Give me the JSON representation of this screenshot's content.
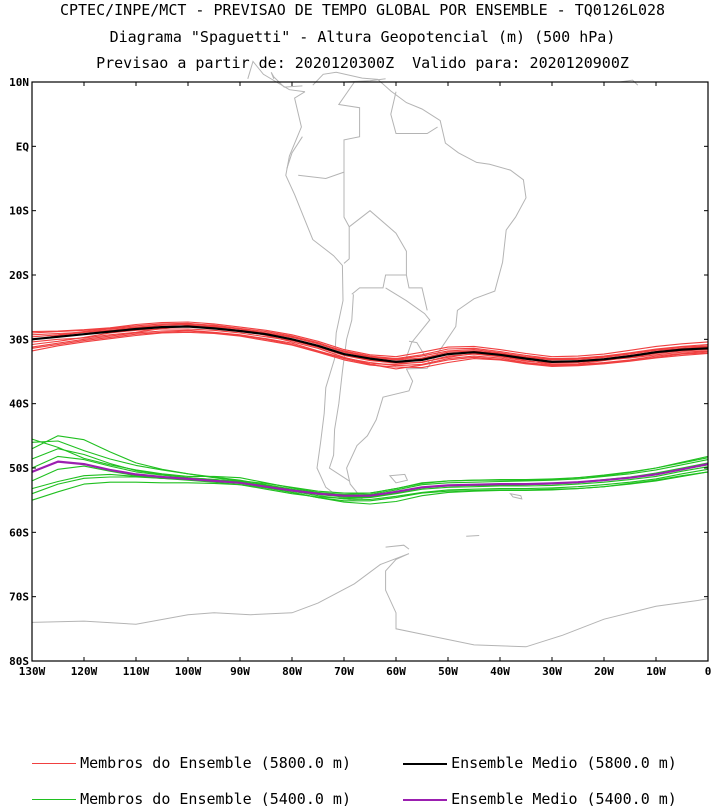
{
  "titles": {
    "line1": "CPTEC/INPE/MCT - PREVISAO DE TEMPO GLOBAL POR ENSEMBLE - TQ0126L028",
    "line2": "Diagrama \"Spaguetti\" - Altura Geopotencial (m) (500 hPa)",
    "line3": "Previsao a partir de: 2020120300Z  Valido para: 2020120900Z"
  },
  "map": {
    "lon_range": [
      -130,
      0
    ],
    "lat_range": [
      -80,
      10
    ],
    "lat_ticks": [
      {
        "value": 10,
        "label": "10N"
      },
      {
        "value": 0,
        "label": "EQ"
      },
      {
        "value": -10,
        "label": "10S"
      },
      {
        "value": -20,
        "label": "20S"
      },
      {
        "value": -30,
        "label": "30S"
      },
      {
        "value": -40,
        "label": "40S"
      },
      {
        "value": -50,
        "label": "50S"
      },
      {
        "value": -60,
        "label": "60S"
      },
      {
        "value": -70,
        "label": "70S"
      },
      {
        "value": -80,
        "label": "80S"
      }
    ],
    "lon_ticks": [
      {
        "value": -130,
        "label": "130W"
      },
      {
        "value": -120,
        "label": "120W"
      },
      {
        "value": -110,
        "label": "110W"
      },
      {
        "value": -100,
        "label": "100W"
      },
      {
        "value": -90,
        "label": "90W"
      },
      {
        "value": -80,
        "label": "80W"
      },
      {
        "value": -70,
        "label": "70W"
      },
      {
        "value": -60,
        "label": "60W"
      },
      {
        "value": -50,
        "label": "50W"
      },
      {
        "value": -40,
        "label": "40W"
      },
      {
        "value": -30,
        "label": "30W"
      },
      {
        "value": -20,
        "label": "20W"
      },
      {
        "value": -10,
        "label": "10W"
      },
      {
        "value": 0,
        "label": "0"
      }
    ],
    "colors": {
      "coast": "#b4b4b4",
      "members_5800": "#f04040",
      "mean_5800": "#000000",
      "members_5400": "#20c020",
      "mean_5400": "#9b1fb0"
    }
  },
  "chart_data": {
    "type": "line",
    "x": [
      -130,
      -125,
      -120,
      -115,
      -110,
      -105,
      -100,
      -95,
      -90,
      -85,
      -80,
      -75,
      -70,
      -65,
      -60,
      -55,
      -50,
      -45,
      -40,
      -35,
      -30,
      -25,
      -20,
      -15,
      -10,
      -5,
      0
    ],
    "series": [
      {
        "name": "Ensemble Medio (5800.0 m)",
        "role": "mean_5800",
        "values": [
          -30.0,
          -29.6,
          -29.2,
          -28.8,
          -28.4,
          -28.1,
          -28.0,
          -28.3,
          -28.7,
          -29.2,
          -30.0,
          -31.0,
          -32.3,
          -33.0,
          -33.5,
          -33.2,
          -32.3,
          -32.0,
          -32.4,
          -33.0,
          -33.5,
          -33.4,
          -33.1,
          -32.6,
          -32.0,
          -31.6,
          -31.4
        ]
      },
      {
        "name": "",
        "role": "members_5800",
        "values": [
          -29.0,
          -28.8,
          -28.6,
          -28.3,
          -27.9,
          -27.6,
          -27.5,
          -27.9,
          -28.4,
          -29.0,
          -29.6,
          -30.6,
          -31.8,
          -32.6,
          -33.0,
          -32.4,
          -31.5,
          -31.4,
          -31.9,
          -32.5,
          -33.0,
          -32.9,
          -32.6,
          -32.1,
          -31.5,
          -31.1,
          -30.8
        ]
      },
      {
        "name": "",
        "role": "members_5800",
        "values": [
          -31.2,
          -30.6,
          -30.0,
          -29.5,
          -29.0,
          -28.7,
          -28.6,
          -28.9,
          -29.3,
          -29.9,
          -30.6,
          -31.8,
          -32.9,
          -33.6,
          -34.1,
          -33.9,
          -33.0,
          -32.6,
          -32.9,
          -33.6,
          -34.0,
          -33.9,
          -33.6,
          -33.2,
          -32.6,
          -32.2,
          -31.9
        ]
      },
      {
        "name": "",
        "role": "members_5800",
        "values": [
          -30.4,
          -30.0,
          -29.8,
          -29.3,
          -28.9,
          -28.3,
          -27.8,
          -28.0,
          -28.4,
          -29.4,
          -30.4,
          -31.4,
          -32.8,
          -33.8,
          -33.9,
          -33.5,
          -32.8,
          -32.2,
          -32.5,
          -33.3,
          -33.9,
          -33.8,
          -33.3,
          -32.8,
          -32.2,
          -31.8,
          -31.6
        ]
      },
      {
        "name": "",
        "role": "members_5800",
        "values": [
          -29.6,
          -29.3,
          -28.8,
          -28.4,
          -28.1,
          -27.8,
          -27.7,
          -28.1,
          -28.6,
          -29.0,
          -29.7,
          -30.7,
          -32.0,
          -32.8,
          -33.2,
          -32.9,
          -32.0,
          -31.8,
          -32.2,
          -32.8,
          -33.2,
          -33.1,
          -32.8,
          -32.3,
          -31.7,
          -31.4,
          -31.1
        ]
      },
      {
        "name": "",
        "role": "members_5800",
        "values": [
          -31.8,
          -31.0,
          -30.4,
          -29.9,
          -29.4,
          -29.0,
          -28.9,
          -29.1,
          -29.5,
          -30.2,
          -30.9,
          -32.0,
          -33.2,
          -34.0,
          -34.3,
          -34.4,
          -33.6,
          -33.0,
          -33.2,
          -33.8,
          -34.2,
          -34.1,
          -33.8,
          -33.4,
          -32.9,
          -32.5,
          -32.2
        ]
      },
      {
        "name": "",
        "role": "members_5800",
        "values": [
          -28.8,
          -28.7,
          -28.5,
          -28.2,
          -27.7,
          -27.4,
          -27.3,
          -27.6,
          -28.1,
          -28.6,
          -29.3,
          -30.3,
          -31.6,
          -32.4,
          -32.7,
          -32.0,
          -31.2,
          -31.1,
          -31.6,
          -32.2,
          -32.7,
          -32.6,
          -32.3,
          -31.7,
          -31.1,
          -30.7,
          -30.4
        ]
      },
      {
        "name": "",
        "role": "members_5800",
        "values": [
          -30.8,
          -30.3,
          -29.7,
          -29.0,
          -28.6,
          -28.4,
          -28.4,
          -28.6,
          -29.0,
          -29.6,
          -30.2,
          -31.2,
          -32.5,
          -33.3,
          -33.7,
          -33.6,
          -32.6,
          -32.3,
          -32.7,
          -33.4,
          -33.7,
          -33.6,
          -33.2,
          -32.9,
          -32.4,
          -32.0,
          -31.8
        ]
      },
      {
        "name": "",
        "role": "members_5800",
        "values": [
          -30.1,
          -29.4,
          -28.9,
          -28.6,
          -28.3,
          -28.0,
          -27.9,
          -28.2,
          -28.8,
          -29.3,
          -30.1,
          -31.1,
          -32.4,
          -33.2,
          -33.6,
          -33.0,
          -32.2,
          -32.1,
          -32.6,
          -33.1,
          -33.6,
          -33.3,
          -33.0,
          -32.5,
          -31.9,
          -31.5,
          -31.2
        ]
      },
      {
        "name": "",
        "role": "members_5800",
        "values": [
          -31.4,
          -30.8,
          -30.2,
          -29.7,
          -29.2,
          -28.9,
          -28.7,
          -29.0,
          -29.4,
          -30.0,
          -30.8,
          -31.9,
          -33.0,
          -33.9,
          -34.6,
          -34.0,
          -33.2,
          -32.8,
          -33.1,
          -33.7,
          -34.1,
          -34.0,
          -33.7,
          -33.3,
          -32.8,
          -32.3,
          -32.1
        ]
      },
      {
        "name": "",
        "role": "members_5800",
        "values": [
          -29.3,
          -29.1,
          -28.9,
          -28.6,
          -28.2,
          -27.8,
          -27.6,
          -27.8,
          -28.3,
          -28.8,
          -29.5,
          -30.5,
          -31.9,
          -32.7,
          -33.1,
          -32.6,
          -31.8,
          -31.6,
          -32.1,
          -32.7,
          -33.1,
          -33.0,
          -32.7,
          -32.2,
          -31.6,
          -31.2,
          -31.0
        ]
      },
      {
        "name": "Ensemble Medio (5400.0 m)",
        "role": "mean_5400",
        "values": [
          -50.6,
          -49.0,
          -49.4,
          -50.3,
          -51.0,
          -51.4,
          -51.7,
          -52.0,
          -52.3,
          -52.9,
          -53.5,
          -54.0,
          -54.3,
          -54.3,
          -53.7,
          -53.0,
          -52.7,
          -52.6,
          -52.5,
          -52.5,
          -52.4,
          -52.2,
          -51.9,
          -51.5,
          -51.0,
          -50.2,
          -49.4
        ]
      },
      {
        "name": "",
        "role": "members_5400",
        "values": [
          -46.0,
          -45.8,
          -47.3,
          -48.6,
          -49.6,
          -50.3,
          -50.9,
          -51.4,
          -51.9,
          -52.6,
          -53.3,
          -53.9,
          -54.2,
          -54.1,
          -53.4,
          -52.6,
          -52.3,
          -52.2,
          -52.1,
          -52.0,
          -51.9,
          -51.7,
          -51.3,
          -50.9,
          -50.3,
          -49.5,
          -48.7
        ]
      },
      {
        "name": "",
        "role": "members_5400",
        "values": [
          -54.0,
          -52.5,
          -51.6,
          -51.4,
          -51.4,
          -51.6,
          -51.7,
          -51.8,
          -52.1,
          -52.8,
          -53.6,
          -54.3,
          -54.8,
          -54.9,
          -54.4,
          -53.8,
          -53.4,
          -53.3,
          -53.2,
          -53.2,
          -53.1,
          -52.9,
          -52.6,
          -52.2,
          -51.7,
          -50.9,
          -50.2
        ]
      },
      {
        "name": "",
        "role": "members_5400",
        "values": [
          -45.5,
          -46.8,
          -48.5,
          -49.5,
          -50.3,
          -50.9,
          -51.3,
          -51.3,
          -51.5,
          -52.3,
          -53.1,
          -53.8,
          -54.1,
          -53.9,
          -53.2,
          -52.4,
          -52.0,
          -51.9,
          -51.9,
          -51.9,
          -51.8,
          -51.5,
          -51.2,
          -50.7,
          -50.0,
          -49.2,
          -48.4
        ]
      },
      {
        "name": "",
        "role": "members_5400",
        "values": [
          -55.0,
          -53.7,
          -52.5,
          -52.2,
          -52.2,
          -52.3,
          -52.3,
          -52.4,
          -52.6,
          -53.1,
          -53.8,
          -54.6,
          -55.1,
          -55.1,
          -54.6,
          -53.9,
          -53.6,
          -53.5,
          -53.4,
          -53.4,
          -53.3,
          -53.2,
          -52.9,
          -52.5,
          -52.0,
          -51.3,
          -50.6
        ]
      },
      {
        "name": "",
        "role": "members_5400",
        "values": [
          -47.0,
          -45.0,
          -45.6,
          -47.5,
          -49.2,
          -50.2,
          -50.9,
          -51.5,
          -52.0,
          -52.4,
          -53.0,
          -53.6,
          -53.9,
          -53.9,
          -53.2,
          -52.3,
          -52.0,
          -51.9,
          -51.8,
          -51.8,
          -51.7,
          -51.5,
          -51.1,
          -50.6,
          -50.0,
          -49.1,
          -48.2
        ]
      },
      {
        "name": "",
        "role": "members_5400",
        "values": [
          -52.0,
          -50.2,
          -49.7,
          -50.5,
          -51.2,
          -51.6,
          -51.9,
          -52.2,
          -52.6,
          -53.3,
          -54.0,
          -54.5,
          -54.7,
          -54.6,
          -54.0,
          -53.3,
          -53.0,
          -52.9,
          -52.8,
          -52.8,
          -52.7,
          -52.5,
          -52.2,
          -51.8,
          -51.3,
          -50.5,
          -49.8
        ]
      },
      {
        "name": "",
        "role": "members_5400",
        "values": [
          -48.6,
          -47.0,
          -47.9,
          -49.3,
          -50.4,
          -51.0,
          -51.5,
          -51.8,
          -52.1,
          -52.7,
          -53.4,
          -54.0,
          -54.4,
          -54.4,
          -53.8,
          -53.0,
          -52.7,
          -52.6,
          -52.6,
          -52.5,
          -52.4,
          -52.2,
          -51.8,
          -51.4,
          -50.8,
          -50.0,
          -49.2
        ]
      },
      {
        "name": "",
        "role": "members_5400",
        "values": [
          -53.2,
          -52.1,
          -51.2,
          -51.0,
          -51.3,
          -51.6,
          -51.8,
          -52.0,
          -52.4,
          -53.0,
          -53.8,
          -54.6,
          -55.3,
          -55.6,
          -55.2,
          -54.3,
          -53.8,
          -53.6,
          -53.5,
          -53.5,
          -53.4,
          -53.2,
          -52.9,
          -52.4,
          -51.9,
          -51.2,
          -50.6
        ]
      },
      {
        "name": "",
        "role": "members_5400",
        "values": [
          -50.0,
          -48.2,
          -48.7,
          -49.7,
          -50.6,
          -51.1,
          -51.5,
          -51.8,
          -52.2,
          -52.8,
          -53.5,
          -54.1,
          -54.5,
          -54.5,
          -53.9,
          -53.1,
          -52.8,
          -52.7,
          -52.7,
          -52.6,
          -52.5,
          -52.3,
          -51.9,
          -51.5,
          -51.0,
          -50.2,
          -49.5
        ]
      }
    ],
    "xlabel": "",
    "ylabel": "",
    "legend": [
      {
        "label": "Membros do Ensemble (5800.0 m)",
        "role": "members_5800"
      },
      {
        "label": "Ensemble Medio (5800.0 m)",
        "role": "mean_5800"
      },
      {
        "label": "Membros do Ensemble (5400.0 m)",
        "role": "members_5400"
      },
      {
        "label": "Ensemble Medio (5400.0 m)",
        "role": "mean_5400"
      }
    ],
    "legend_placement": "bottom",
    "grid": false
  }
}
